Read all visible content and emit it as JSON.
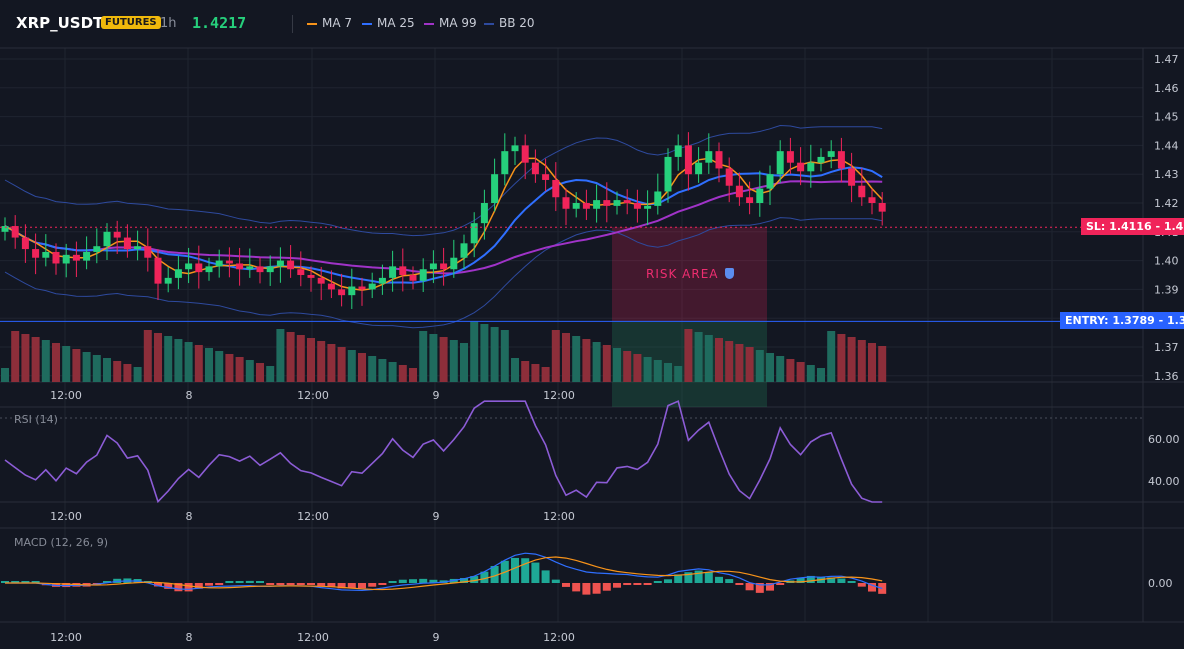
{
  "header": {
    "symbol": "XRP_USDT",
    "badge": "FUTURES",
    "interval": "1h",
    "price": "1.4217",
    "legend": [
      {
        "label": "MA 7",
        "color": "#f7931a"
      },
      {
        "label": "MA 25",
        "color": "#2f6fff"
      },
      {
        "label": "MA 99",
        "color": "#a033c8"
      },
      {
        "label": "BB 20",
        "color": "#2e4a9e"
      }
    ]
  },
  "price_axis": {
    "labels": [
      "1.47",
      "1.46",
      "1.45",
      "1.44",
      "1.43",
      "1.42",
      "1.41",
      "1.40",
      "1.39",
      "1.38",
      "1.37",
      "1.36"
    ],
    "values": [
      1.47,
      1.46,
      1.45,
      1.44,
      1.43,
      1.42,
      1.41,
      1.4,
      1.39,
      1.38,
      1.37,
      1.36
    ]
  },
  "time_axis": {
    "labels": [
      "12:00",
      "8",
      "12:00",
      "9",
      "12:00"
    ]
  },
  "trade": {
    "sl_label": "SL: 1.4116",
    "sl_axis": "1.41",
    "sl_price": 1.4116,
    "entry_label": "ENTRY: 1.3789",
    "entry_axis": "1.38",
    "entry_price": 1.3789,
    "risk_label": "RISK AREA"
  },
  "rsi": {
    "label": "RSI (14)",
    "axis_labels": [
      "60.00",
      "40.00"
    ],
    "axis_values": [
      60,
      40
    ]
  },
  "macd": {
    "label": "MACD (12, 26, 9)",
    "axis_labels": [
      "0.00"
    ],
    "axis_values": [
      0
    ]
  },
  "colors": {
    "up": "#26d07c",
    "down": "#f0245a",
    "vol_up": "#1f6b5e",
    "vol_down": "#8d2e3a",
    "rsi": "#8c5cd6",
    "macd_line": "#2f6fff",
    "signal_line": "#f7931a",
    "hist_up": "#1ea896",
    "hist_down": "#ef5350"
  }
}
